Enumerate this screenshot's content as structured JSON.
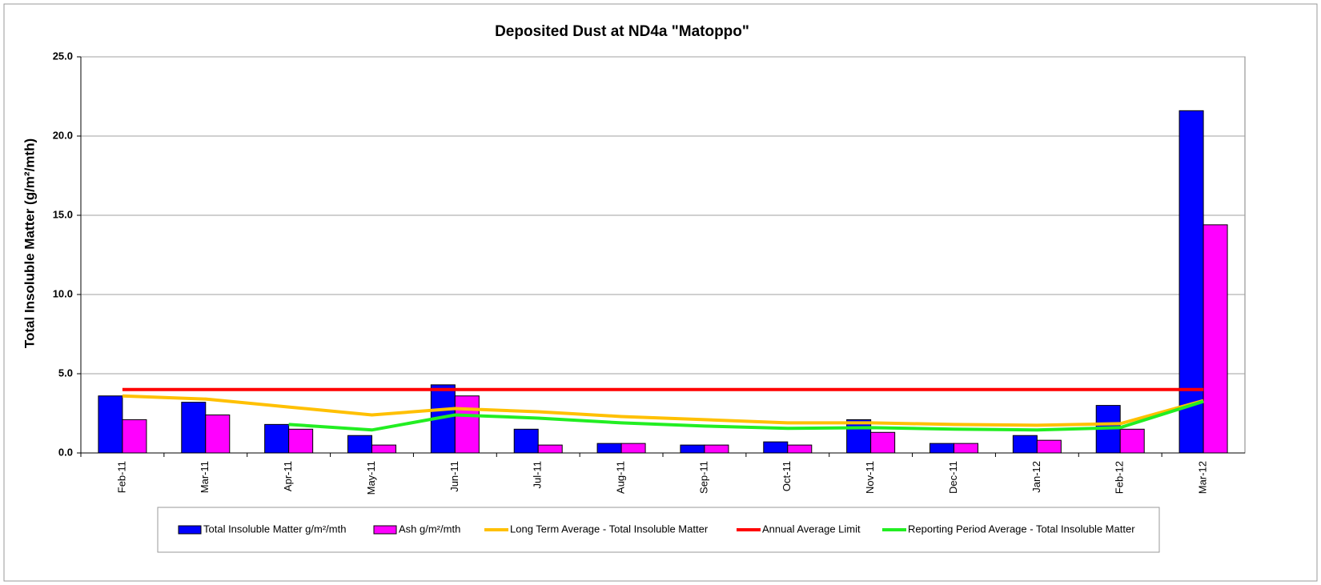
{
  "chart_data": {
    "type": "bar",
    "title": "Deposited Dust at ND4a \"Matoppo\"",
    "y_label": "Total Insoluble Matter  (g/m²/mth)",
    "categories": [
      "Feb-11",
      "Mar-11",
      "Apr-11",
      "May-11",
      "Jun-11",
      "Jul-11",
      "Aug-11",
      "Sep-11",
      "Oct-11",
      "Nov-11",
      "Dec-11",
      "Jan-12",
      "Feb-12",
      "Mar-12"
    ],
    "series": [
      {
        "name": "Total Insoluble Matter  g/m²/mth",
        "type": "bar",
        "color": "#0000ff",
        "values": [
          3.6,
          3.2,
          1.8,
          1.1,
          4.3,
          1.5,
          0.6,
          0.5,
          0.7,
          2.1,
          0.6,
          1.1,
          3.0,
          21.6
        ]
      },
      {
        "name": "Ash  g/m²/mth",
        "type": "bar",
        "color": "#ff00ff",
        "values": [
          2.1,
          2.4,
          1.5,
          0.5,
          3.6,
          0.5,
          0.6,
          0.5,
          0.5,
          1.3,
          0.6,
          0.8,
          1.5,
          14.4
        ]
      },
      {
        "name": "Long Term Average - Total Insoluble Matter",
        "type": "line",
        "color": "#ffc000",
        "values": [
          3.6,
          3.4,
          2.9,
          2.4,
          2.8,
          2.6,
          2.3,
          2.1,
          1.9,
          1.9,
          1.8,
          1.75,
          1.85,
          3.3
        ]
      },
      {
        "name": "Annual Average Limit",
        "type": "line",
        "color": "#ff0000",
        "values": [
          4,
          4,
          4,
          4,
          4,
          4,
          4,
          4,
          4,
          4,
          4,
          4,
          4,
          4
        ]
      },
      {
        "name": "Reporting Period Average - Total Insoluble Matter",
        "type": "line",
        "color": "#22ee22",
        "values": [
          null,
          null,
          1.8,
          1.45,
          2.4,
          2.2,
          1.9,
          1.7,
          1.55,
          1.6,
          1.5,
          1.45,
          1.6,
          3.25
        ]
      }
    ],
    "ylim": [
      0,
      25
    ],
    "yticks": [
      {
        "value": 0,
        "label": "0.0"
      },
      {
        "value": 5,
        "label": "5.0"
      },
      {
        "value": 10,
        "label": "10.0"
      },
      {
        "value": 15,
        "label": "15.0"
      },
      {
        "value": 20,
        "label": "20.0"
      },
      {
        "value": 25,
        "label": "25.0"
      }
    ],
    "grid": true,
    "legend": "bottom"
  }
}
